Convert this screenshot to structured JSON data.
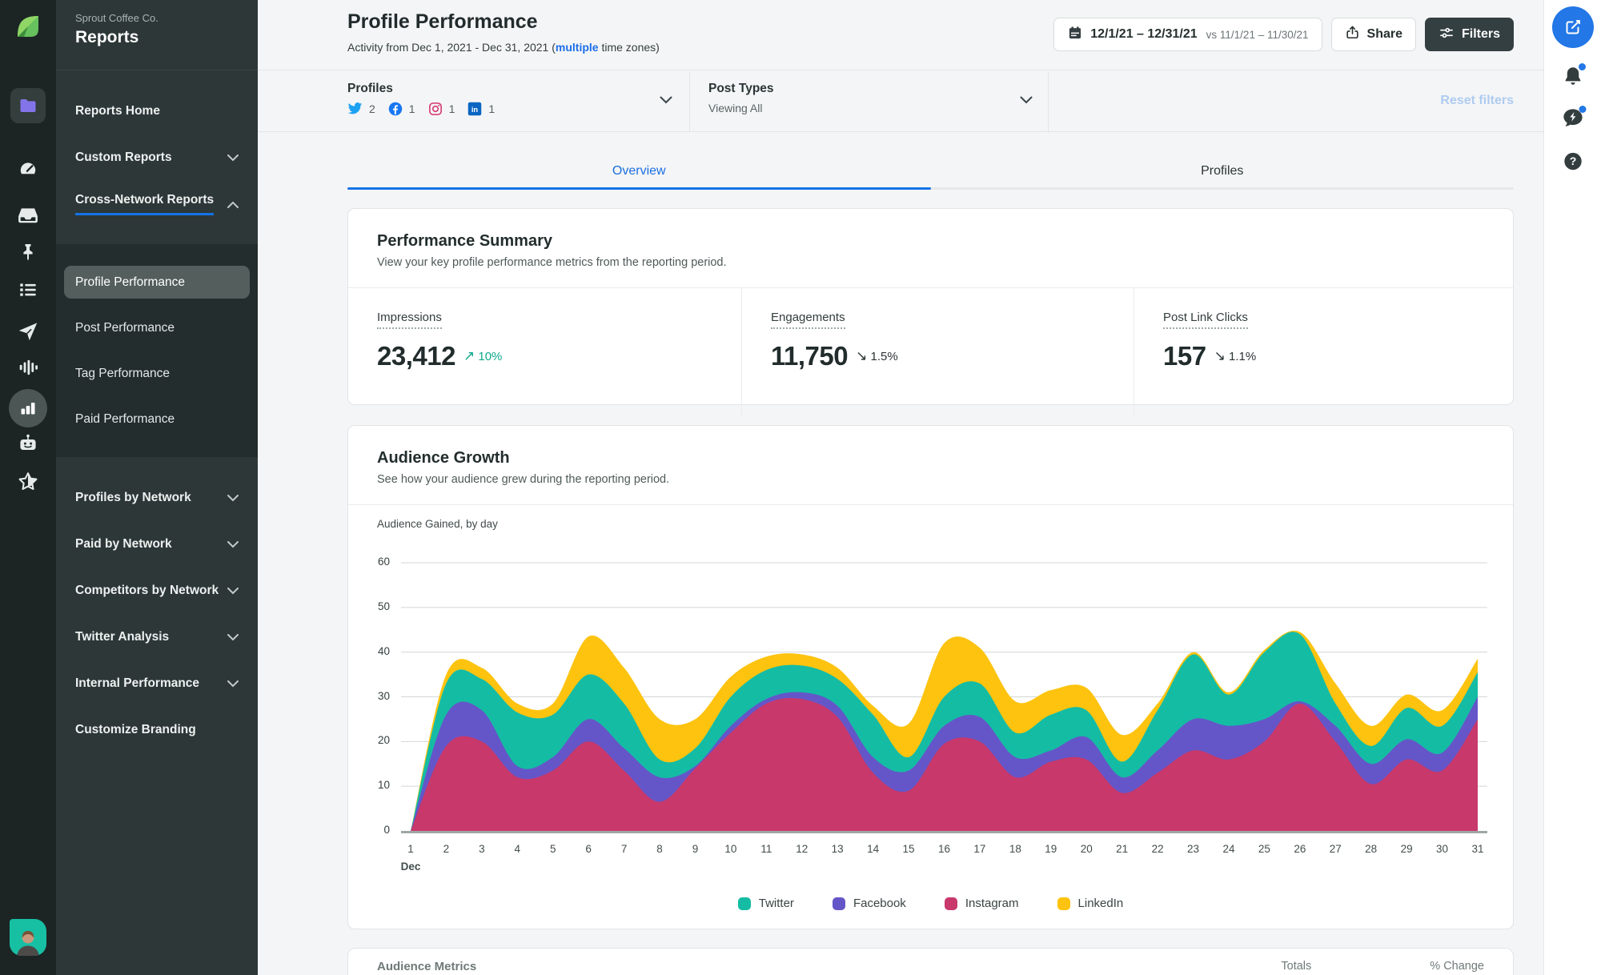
{
  "brand": {
    "company": "Sprout Coffee Co.",
    "section": "Reports"
  },
  "left_rail": {
    "icons": [
      "sprout-logo",
      "folder",
      "gauge",
      "inbox",
      "pin",
      "list",
      "paper-plane",
      "waveform",
      "bar-chart",
      "bot",
      "star",
      "user-avatar"
    ],
    "active_icons": [
      "folder",
      "bar-chart"
    ]
  },
  "sidebar": {
    "items": [
      {
        "label": "Reports Home",
        "type": "top"
      },
      {
        "label": "Custom Reports",
        "type": "top",
        "chevron": "down"
      },
      {
        "label": "Cross-Network Reports",
        "type": "top",
        "chevron": "up",
        "underline": true
      },
      {
        "label": "Profile Performance",
        "type": "sub",
        "active": true
      },
      {
        "label": "Post Performance",
        "type": "sub"
      },
      {
        "label": "Tag Performance",
        "type": "sub"
      },
      {
        "label": "Paid Performance",
        "type": "sub"
      },
      {
        "label": "Profiles by Network",
        "type": "top",
        "chevron": "down"
      },
      {
        "label": "Paid by Network",
        "type": "top",
        "chevron": "down"
      },
      {
        "label": "Competitors by Network",
        "type": "top",
        "chevron": "down"
      },
      {
        "label": "Twitter Analysis",
        "type": "top",
        "chevron": "down"
      },
      {
        "label": "Internal Performance",
        "type": "top",
        "chevron": "down"
      },
      {
        "label": "Customize Branding",
        "type": "top"
      }
    ]
  },
  "header": {
    "title": "Profile Performance",
    "subtitle_prefix": "Activity from Dec 1, 2021 - Dec 31, 2021 (",
    "subtitle_link": "multiple",
    "subtitle_suffix": " time zones)",
    "date_range": "12/1/21 – 12/31/21",
    "compare_range": "vs 11/1/21 – 11/30/21",
    "share_label": "Share",
    "filters_label": "Filters"
  },
  "filter_bar": {
    "profiles_label": "Profiles",
    "networks": [
      {
        "name": "twitter",
        "count": "2"
      },
      {
        "name": "facebook",
        "count": "1"
      },
      {
        "name": "instagram",
        "count": "1"
      },
      {
        "name": "linkedin",
        "count": "1"
      }
    ],
    "post_types_label": "Post Types",
    "post_types_value": "Viewing All",
    "reset_label": "Reset filters"
  },
  "tabs": [
    {
      "label": "Overview",
      "active": true
    },
    {
      "label": "Profiles",
      "active": false
    }
  ],
  "performance_summary": {
    "title": "Performance Summary",
    "subtitle": "View your key profile performance metrics from the reporting period.",
    "metrics": [
      {
        "label": "Impressions",
        "value": "23,412",
        "delta": "10%",
        "direction": "up",
        "positive": true
      },
      {
        "label": "Engagements",
        "value": "11,750",
        "delta": "1.5%",
        "direction": "down",
        "positive": false
      },
      {
        "label": "Post Link Clicks",
        "value": "157",
        "delta": "1.1%",
        "direction": "down",
        "positive": false
      }
    ]
  },
  "audience_growth": {
    "title": "Audience Growth",
    "subtitle": "See how your audience grew during the reporting period."
  },
  "chart_data": {
    "type": "area",
    "stacked": true,
    "title": "Audience Gained, by day",
    "x": [
      1,
      2,
      3,
      4,
      5,
      6,
      7,
      8,
      9,
      10,
      11,
      12,
      13,
      14,
      15,
      16,
      17,
      18,
      19,
      20,
      21,
      22,
      23,
      24,
      25,
      26,
      27,
      28,
      29,
      30,
      31
    ],
    "x_axis_label": "Dec",
    "ylim": [
      0,
      60
    ],
    "yticks": [
      0,
      10,
      20,
      30,
      40,
      50,
      60
    ],
    "grid": true,
    "legend_position": "bottom",
    "series": [
      {
        "name": "Instagram",
        "color": "#C8386B",
        "values": [
          0,
          19,
          20,
          12,
          13.5,
          20,
          13.5,
          6.5,
          14,
          22,
          28.5,
          29.5,
          25.5,
          13,
          9,
          19.5,
          20,
          12,
          15.5,
          16,
          8.5,
          13,
          18,
          16,
          20,
          28.5,
          20,
          10.5,
          16,
          13.5,
          25
        ]
      },
      {
        "name": "Facebook",
        "color": "#6456C8",
        "values": [
          0,
          7,
          7,
          2.5,
          3,
          5,
          5,
          5.5,
          0.5,
          1.5,
          1,
          1.5,
          2.5,
          3.5,
          4.5,
          4,
          5.5,
          4.5,
          2.5,
          5,
          3.5,
          5,
          7,
          7.5,
          5,
          0.5,
          3.5,
          4.5,
          4.5,
          4,
          5
        ]
      },
      {
        "name": "Twitter",
        "color": "#15BCA4",
        "values": [
          0,
          7,
          7,
          12,
          9.5,
          10,
          10,
          4,
          4,
          6.5,
          6.5,
          6,
          6,
          9.5,
          3,
          6.5,
          7.5,
          5.5,
          8,
          6,
          3.5,
          9,
          14.5,
          7,
          15,
          15,
          5,
          4,
          7,
          6,
          5.5
        ]
      },
      {
        "name": "LinkedIn",
        "color": "#FDC30F",
        "values": [
          0,
          2,
          2.5,
          2,
          2.5,
          8.5,
          8,
          9,
          6.5,
          4.5,
          3,
          2.5,
          2.5,
          2,
          7.5,
          12,
          8,
          7,
          5.5,
          5,
          6,
          1.5,
          0.5,
          0.5,
          0.5,
          0.5,
          4.5,
          4.5,
          3,
          3.5,
          3
        ]
      }
    ],
    "legend_order": [
      "Twitter",
      "Facebook",
      "Instagram",
      "LinkedIn"
    ]
  },
  "bottom_table": {
    "title": "Audience Metrics",
    "col_totals": "Totals",
    "col_change": "% Change"
  },
  "colors": {
    "accent_blue": "#1C6FE0",
    "positive_teal": "#0EA88C",
    "twitter_brand": "#1DA1F2",
    "facebook_brand": "#1877F2",
    "instagram_brand": "#D6356C",
    "linkedin_brand": "#0A66C2"
  },
  "right_rail": {
    "icons": [
      "compose",
      "notifications-bell",
      "messages-bubble",
      "help-question"
    ]
  }
}
